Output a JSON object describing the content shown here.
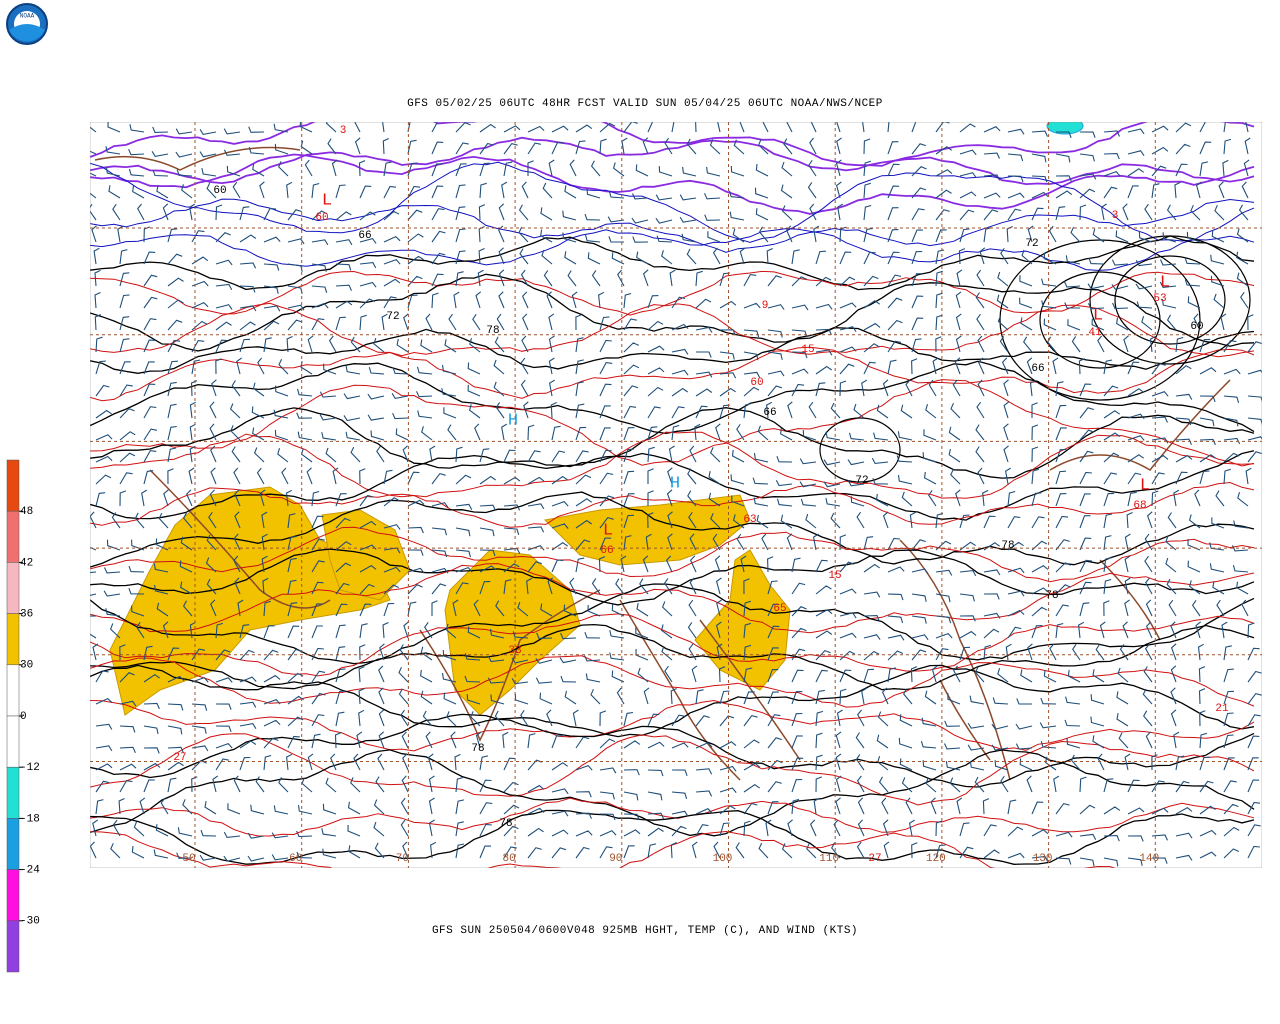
{
  "header": {
    "title": "GFS 05/02/25 06UTC 48HR FCST VALID SUN 05/04/25 06UTC NOAA/NWS/NCEP"
  },
  "footer": {
    "caption": "GFS SUN 250504/0600V048 925MB HGHT, TEMP (C), AND WIND (KTS)"
  },
  "logo": {
    "text": "NOAA"
  },
  "colorbar": {
    "colors": [
      "#e64a10",
      "#f07070",
      "#f6b8c0",
      "#f2c200",
      "#ffffff",
      "#ffffff",
      "#22e0d4",
      "#1aa0e0",
      "#ff10e0",
      "#9040e0"
    ],
    "ticks": [
      48,
      42,
      36,
      30,
      0,
      -12,
      -18,
      -24,
      -30
    ]
  },
  "map": {
    "longitude_labels": [
      50,
      60,
      70,
      80,
      90,
      100,
      110,
      120,
      130,
      140
    ],
    "contour_labels": [
      "3",
      "60",
      "L",
      "60",
      "66",
      "72",
      "78",
      "3",
      "72",
      "L",
      "53",
      "L",
      "41",
      "60",
      "66",
      "9",
      "15",
      "60",
      "66",
      "H",
      "H",
      "L",
      "66",
      "63",
      "72",
      "15",
      "33",
      "78",
      "78",
      "27",
      "27",
      "21",
      "L",
      "68",
      "78",
      "78",
      "65"
    ]
  }
}
